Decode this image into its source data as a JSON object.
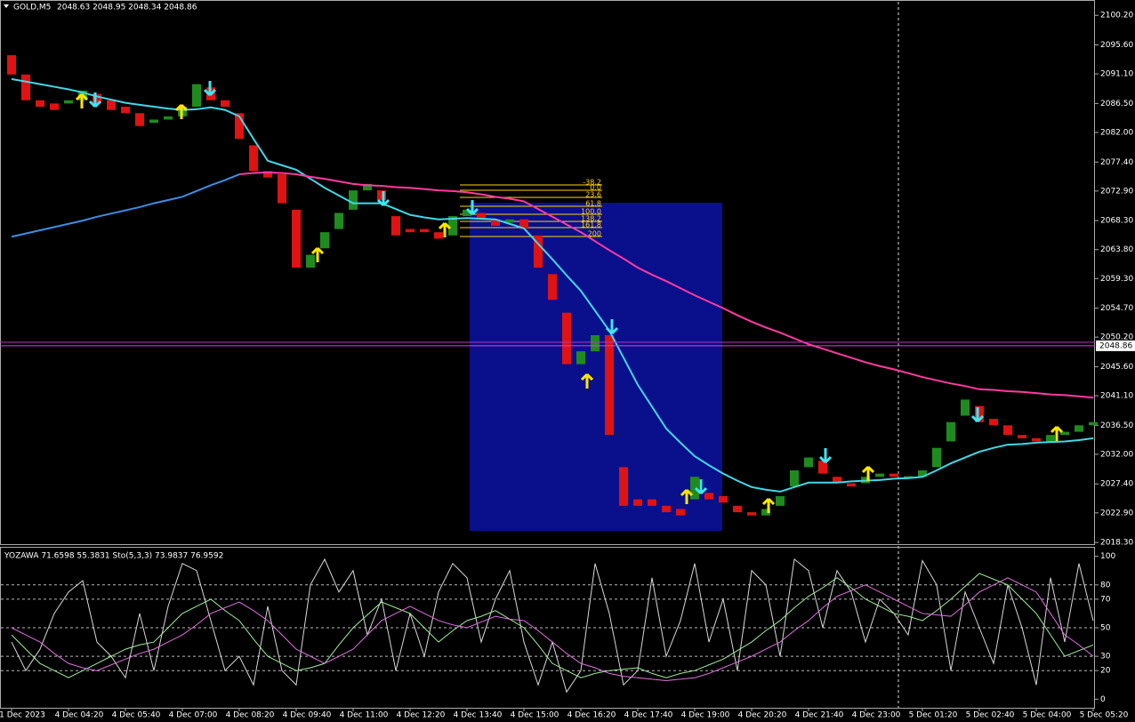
{
  "chart_data": [
    {
      "type": "candlestick",
      "title": "GOLD,M5",
      "subtitle": "2048.63 2048.95 2048.34 2048.86",
      "categories": [
        "1 Dec 2023",
        null,
        null,
        null,
        "4 Dec 04:20",
        null,
        null,
        null,
        "4 Dec 05:40",
        null,
        null,
        null,
        "4 Dec 07:00",
        null,
        null,
        null,
        "4 Dec 08:20",
        null,
        null,
        null,
        "4 Dec 09:40",
        null,
        null,
        null,
        "4 Dec 11:00",
        null,
        null,
        null,
        "4 Dec 12:20",
        null,
        null,
        null,
        "4 Dec 13:40",
        null,
        null,
        null,
        "4 Dec 15:00",
        null,
        null,
        null,
        "4 Dec 16:20",
        null,
        null,
        null,
        "4 Dec 17:40",
        null,
        null,
        null,
        "4 Dec 19:00",
        null,
        null,
        null,
        "4 Dec 20:20",
        null,
        null,
        null,
        "4 Dec 21:40",
        null,
        null,
        null,
        "4 Dec 23:00",
        null,
        null,
        null,
        "5 Dec 01:20",
        null,
        null,
        null,
        "5 Dec 02:40",
        null,
        null,
        null,
        "5 Dec 04:00",
        null,
        null,
        null,
        "5 Dec 05:20"
      ],
      "open": [
        2094,
        2091,
        2087,
        2086.5,
        2086.5,
        2087,
        2088,
        2087,
        2086,
        2085,
        2083.5,
        2084,
        2084.5,
        2086,
        2089,
        2087,
        2085,
        2080,
        2076,
        2075.5,
        2070,
        2061,
        2064,
        2067,
        2070,
        2073,
        2073,
        2069,
        2067,
        2067,
        2066.5,
        2066,
        2069,
        2069.5,
        2068.5,
        2068,
        2068.5,
        2066,
        2060,
        2054,
        2046,
        2048,
        2050.5,
        2030,
        2025,
        2025,
        2024,
        2023.5,
        2025,
        2026,
        2025.5,
        2024,
        2023,
        2022.5,
        2024,
        2027,
        2030,
        2031,
        2028.5,
        2027.5,
        2027.5,
        2028.5,
        2029,
        2028.3,
        2028.5,
        2030,
        2034,
        2038,
        2039.5,
        2037.5,
        2036.5,
        2035,
        2034.5,
        2034,
        2035,
        2035.5,
        2036.5
      ],
      "close": [
        2091,
        2087,
        2086,
        2085.5,
        2087,
        2088.5,
        2086.5,
        2085.5,
        2085,
        2083,
        2084,
        2084.5,
        2086,
        2089.5,
        2087,
        2086,
        2081,
        2076,
        2075,
        2071,
        2061,
        2063,
        2066.5,
        2069.5,
        2073,
        2074,
        2071.5,
        2066,
        2066.5,
        2066.5,
        2065.5,
        2069,
        2070,
        2068.5,
        2067.5,
        2068.5,
        2067,
        2061,
        2056,
        2046,
        2048,
        2050.5,
        2035,
        2024,
        2024,
        2024,
        2023,
        2022.5,
        2028.5,
        2025,
        2024.5,
        2023,
        2022.5,
        2023.5,
        2025.5,
        2029.5,
        2031.5,
        2029,
        2027.5,
        2027,
        2028.5,
        2029,
        2028.5,
        2028.6,
        2029.5,
        2033,
        2037,
        2040.5,
        2037,
        2036.5,
        2035,
        2034.5,
        2034,
        2035,
        2035.5,
        2036.5,
        2037
      ],
      "up_color": "#1f8b1f",
      "down_color": "#e01212",
      "series": [
        {
          "color": "#40d8e8",
          "values": [
            2090.3,
            2089.9,
            2089.5,
            2089.1,
            2088.7,
            2088.2,
            2087.6,
            2087.1,
            2086.6,
            2086.3,
            2086,
            2085.7,
            2085.5,
            2085.6,
            2085.9,
            2085.5,
            2084.5,
            2081,
            2077.6,
            2076.9,
            2076.2,
            2074.8,
            2073.4,
            2072.2,
            2071,
            2071,
            2071,
            2070.1,
            2069.2,
            2068.8,
            2068.5,
            2068.6,
            2068.7,
            2068.6,
            2068.5,
            2067.8,
            2067.1,
            2064.7,
            2062.3,
            2059.8,
            2057.4,
            2054.3,
            2051.2,
            2047,
            2042.8,
            2039.4,
            2036,
            2033.8,
            2031.7,
            2030.3,
            2029,
            2027.9,
            2026.9,
            2026.5,
            2026.2,
            2026.9,
            2027.6,
            2027.6,
            2027.6,
            2027.8,
            2027.9,
            2028,
            2028.2,
            2028.3,
            2028.5,
            2029.5,
            2030.6,
            2031.5,
            2032.4,
            2033,
            2033.5,
            2033.6,
            2033.8,
            2033.9,
            2034,
            2034.2,
            2034.5
          ]
        },
        {
          "color": "#3a8ee6",
          "values": [
            2065.8,
            2066.3,
            2066.8,
            2067.3,
            2067.8,
            2068.3,
            2068.9,
            2069.4,
            2069.9,
            2070.4,
            2071,
            2071.5,
            2072,
            2072.9,
            2073.8,
            2074.6,
            2075.5,
            null,
            null,
            null,
            null,
            null,
            null,
            null,
            null,
            null,
            null,
            null,
            null,
            null,
            null,
            null,
            null,
            null,
            null,
            null,
            null,
            null,
            null,
            null,
            null,
            null,
            null,
            null,
            null,
            null,
            null,
            null,
            null,
            null,
            null,
            null,
            null,
            null,
            null,
            null,
            null,
            null,
            null,
            null,
            null,
            null,
            null,
            null,
            null,
            null,
            null,
            null,
            null,
            null,
            null,
            null,
            null,
            null,
            null,
            null,
            null
          ]
        },
        {
          "color": "#ff3aa0",
          "values": [
            null,
            null,
            null,
            null,
            null,
            null,
            null,
            null,
            null,
            null,
            null,
            null,
            null,
            null,
            null,
            null,
            2075.5,
            2075.7,
            2075.8,
            2075.7,
            2075.5,
            2075.1,
            2074.8,
            2074.4,
            2074,
            2073.8,
            2073.7,
            2073.5,
            2073.4,
            2073.2,
            2073,
            2072.9,
            2072.7,
            2072.4,
            2072,
            2071.7,
            2071.3,
            2070.1,
            2068.9,
            2067.7,
            2066.5,
            2065.1,
            2063.7,
            2062.4,
            2061,
            2059.9,
            2058.9,
            2057.8,
            2056.7,
            2055.7,
            2054.7,
            2053.6,
            2052.6,
            2051.7,
            2050.9,
            2050,
            2049.1,
            2048.4,
            2047.7,
            2047,
            2046.3,
            2045.7,
            2045.2,
            2044.6,
            2044,
            2043.5,
            2043,
            2042.6,
            2042.1,
            2042,
            2041.8,
            2041.7,
            2041.5,
            2041.3,
            2041.2,
            2041,
            2040.8
          ]
        }
      ],
      "price_line": 2048.86,
      "fib_levels": [
        "-38.2",
        "0.0",
        "23.6",
        "61.8",
        "100.0",
        "138.2",
        "161.8",
        "200"
      ],
      "ylim": [
        2017.9,
        2102.3
      ],
      "yticks": [
        {
          "value": 2100.2,
          "label": "2100.20"
        },
        {
          "value": 2095.6,
          "label": "2095.60"
        },
        {
          "value": 2091.1,
          "label": "2091.10"
        },
        {
          "value": 2086.5,
          "label": "2086.50"
        },
        {
          "value": 2082,
          "label": "2082.00"
        },
        {
          "value": 2077.4,
          "label": "2077.40"
        },
        {
          "value": 2072.9,
          "label": "2072.90"
        },
        {
          "value": 2068.3,
          "label": "2068.30"
        },
        {
          "value": 2063.8,
          "label": "2063.80"
        },
        {
          "value": 2059.3,
          "label": "2059.30"
        },
        {
          "value": 2054.7,
          "label": "2054.70"
        },
        {
          "value": 2050.2,
          "label": "2050.20"
        },
        {
          "value": 2045.6,
          "label": "2045.60"
        },
        {
          "value": 2041.1,
          "label": "2041.10"
        },
        {
          "value": 2036.5,
          "label": "2036.50"
        },
        {
          "value": 2032,
          "label": "2032.00"
        },
        {
          "value": 2027.4,
          "label": "2027.40"
        },
        {
          "value": 2022.9,
          "label": "2022.90"
        },
        {
          "value": 2018.3,
          "label": "2018.30"
        }
      ]
    },
    {
      "type": "line",
      "title": "YOZAWA 71.6598 55.3831  Sto(5,3,3) 73.9837 76.9592",
      "series": [
        {
          "color": "#d8d8d8",
          "values": [
            40,
            20,
            35,
            60,
            75,
            83,
            40,
            30,
            15,
            60,
            20,
            65,
            95,
            90,
            55,
            20,
            30,
            10,
            65,
            20,
            10,
            80,
            98,
            75,
            90,
            45,
            70,
            20,
            60,
            30,
            75,
            95,
            85,
            40,
            70,
            90,
            40,
            10,
            40,
            5,
            20,
            95,
            60,
            10,
            20,
            85,
            30,
            55,
            95,
            40,
            70,
            20,
            90,
            80,
            30,
            98,
            90,
            50,
            90,
            75,
            40,
            70,
            60,
            45,
            97,
            80,
            20,
            75,
            50,
            25,
            80,
            50,
            10,
            85,
            40,
            95,
            55
          ]
        },
        {
          "color": "#9cf09c",
          "values": [
            45,
            35,
            25,
            20,
            15,
            20,
            25,
            30,
            35,
            38,
            40,
            50,
            60,
            65,
            70,
            62,
            55,
            42,
            30,
            25,
            20,
            22,
            25,
            38,
            50,
            59,
            68,
            64,
            60,
            50,
            40,
            48,
            55,
            58,
            62,
            56,
            50,
            38,
            25,
            20,
            15,
            18,
            20,
            21,
            22,
            18,
            15,
            18,
            20,
            24,
            28,
            34,
            40,
            48,
            55,
            64,
            72,
            78,
            85,
            78,
            70,
            65,
            60,
            58,
            55,
            62,
            70,
            79,
            88,
            84,
            80,
            70,
            60,
            45,
            30,
            34,
            38
          ]
        },
        {
          "color": "#e070e0",
          "values": [
            50,
            45,
            40,
            32,
            25,
            22,
            20,
            24,
            28,
            32,
            35,
            40,
            45,
            52,
            60,
            64,
            68,
            62,
            55,
            45,
            35,
            30,
            25,
            30,
            35,
            45,
            55,
            60,
            65,
            60,
            55,
            52,
            50,
            54,
            58,
            56,
            55,
            48,
            40,
            32,
            25,
            22,
            18,
            16,
            15,
            14,
            13,
            14,
            15,
            18,
            22,
            26,
            30,
            35,
            40,
            48,
            55,
            64,
            72,
            76,
            80,
            75,
            70,
            65,
            60,
            59,
            58,
            66,
            75,
            80,
            85,
            80,
            75,
            60,
            45,
            38,
            30
          ]
        }
      ],
      "ylim": [
        -5.4,
        105.4
      ],
      "yticks": [
        100,
        80,
        70,
        50,
        30,
        20,
        0
      ],
      "grid": [
        80,
        70,
        50,
        30,
        20
      ]
    }
  ]
}
